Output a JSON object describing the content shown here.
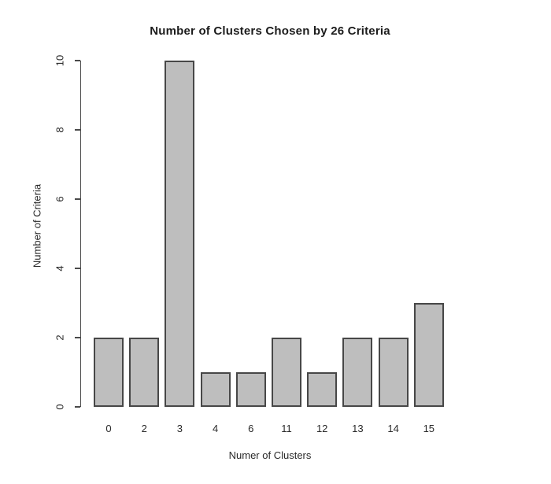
{
  "chart_data": {
    "type": "bar",
    "title": "Number of Clusters Chosen by 26 Criteria",
    "xlabel": "Numer of Clusters",
    "ylabel": "Number of Criteria",
    "categories": [
      "0",
      "2",
      "3",
      "4",
      "6",
      "11",
      "12",
      "13",
      "14",
      "15"
    ],
    "values": [
      2,
      2,
      10,
      1,
      1,
      2,
      1,
      2,
      2,
      3
    ],
    "ylim": [
      0,
      10
    ],
    "yticks": [
      0,
      2,
      4,
      6,
      8,
      10
    ],
    "grid": false,
    "legend": false,
    "colors": {
      "bar_fill": "#bebebe",
      "bar_border": "#474747",
      "axis": "#4a4a4a",
      "text": "#2a2a2a",
      "background": "#ffffff"
    }
  }
}
